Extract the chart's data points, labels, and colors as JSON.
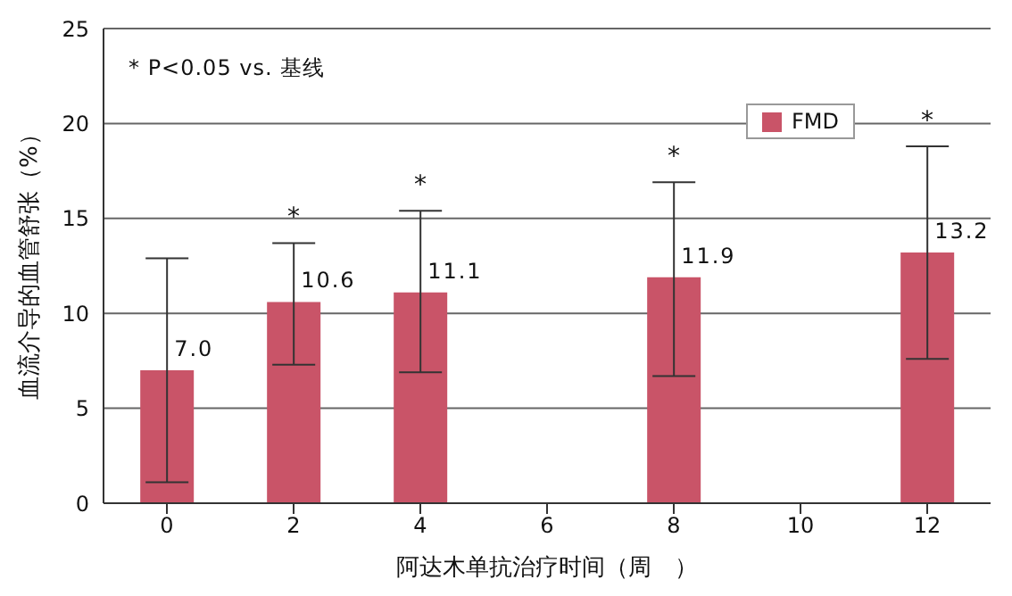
{
  "chart_data": {
    "type": "bar",
    "categories": [
      "0",
      "2",
      "4",
      "6",
      "8",
      "10",
      "12"
    ],
    "series": [
      {
        "name": "FMD",
        "color": "#c95468",
        "values": [
          7.0,
          10.6,
          11.1,
          null,
          11.9,
          null,
          13.2
        ],
        "errors": [
          [
            1.1,
            12.9
          ],
          [
            7.3,
            13.7
          ],
          [
            6.9,
            15.4
          ],
          null,
          [
            6.7,
            16.9
          ],
          null,
          [
            7.6,
            18.8
          ]
        ],
        "value_labels": [
          "7.0",
          "10.6",
          "11.1",
          null,
          "11.9",
          null,
          "13.2"
        ]
      }
    ],
    "xlabel": "阿达木单抗治疗时间（周　）",
    "ylabel": "血流介导的血管舒张（%）",
    "ylim": [
      0,
      25
    ],
    "yticks": [
      0,
      5,
      10,
      15,
      20,
      25
    ],
    "grid": "y",
    "legend": "top right",
    "annotations": [
      "* P<0.05 vs. 基线",
      "*",
      "*",
      "*",
      "*"
    ]
  }
}
